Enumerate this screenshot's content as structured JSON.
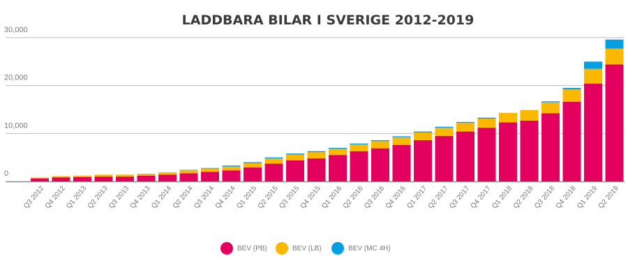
{
  "chart_data": {
    "type": "bar",
    "stacked": true,
    "title": "LADDBARA BILAR I SVERIGE 2012-2019",
    "xlabel": "",
    "ylabel": "",
    "ylim": [
      0,
      30000
    ],
    "yticks": [
      "0",
      "10,000",
      "20,000",
      "30,000"
    ],
    "grid": true,
    "legend_position": "bottom",
    "categories": [
      "Q3 2012",
      "Q4 2012",
      "Q1 2013",
      "Q2 2013",
      "Q3 2013",
      "Q4 2013",
      "Q1 2014",
      "Q2 2014",
      "Q3 2014",
      "Q4 2014",
      "Q1 2015",
      "Q2 2015",
      "Q3 2015",
      "Q4 2015",
      "Q1 2016",
      "Q2 2016",
      "Q3 2016",
      "Q4 2016",
      "Q1 2017",
      "Q2 2017",
      "Q3 2017",
      "Q4 2017",
      "Q1 2018",
      "Q2 2018",
      "Q3 2018",
      "Q4 2018",
      "Q1 2019",
      "Q2 2019"
    ],
    "series": [
      {
        "name": "BEV (PB)",
        "color": "#e3005e",
        "values": [
          600,
          800,
          900,
          1000,
          1000,
          1200,
          1400,
          1700,
          2000,
          2300,
          2900,
          3700,
          4400,
          4800,
          5500,
          6300,
          6900,
          7600,
          8600,
          9500,
          10400,
          11200,
          12300,
          12700,
          14200,
          16600,
          20400,
          24400
        ]
      },
      {
        "name": "BEV (LB)",
        "color": "#fbb800",
        "values": [
          200,
          300,
          300,
          400,
          400,
          400,
          500,
          600,
          700,
          800,
          900,
          1100,
          1200,
          1300,
          1300,
          1400,
          1500,
          1600,
          1600,
          1700,
          1800,
          1900,
          2000,
          2200,
          2300,
          2600,
          3100,
          3300
        ]
      },
      {
        "name": "BEV (MC 4H)",
        "color": "#00a0e3",
        "values": [
          0,
          0,
          0,
          0,
          0,
          0,
          0,
          100,
          100,
          200,
          200,
          200,
          200,
          200,
          200,
          200,
          200,
          200,
          200,
          200,
          200,
          200,
          0,
          0,
          200,
          300,
          1500,
          1900
        ]
      }
    ]
  }
}
